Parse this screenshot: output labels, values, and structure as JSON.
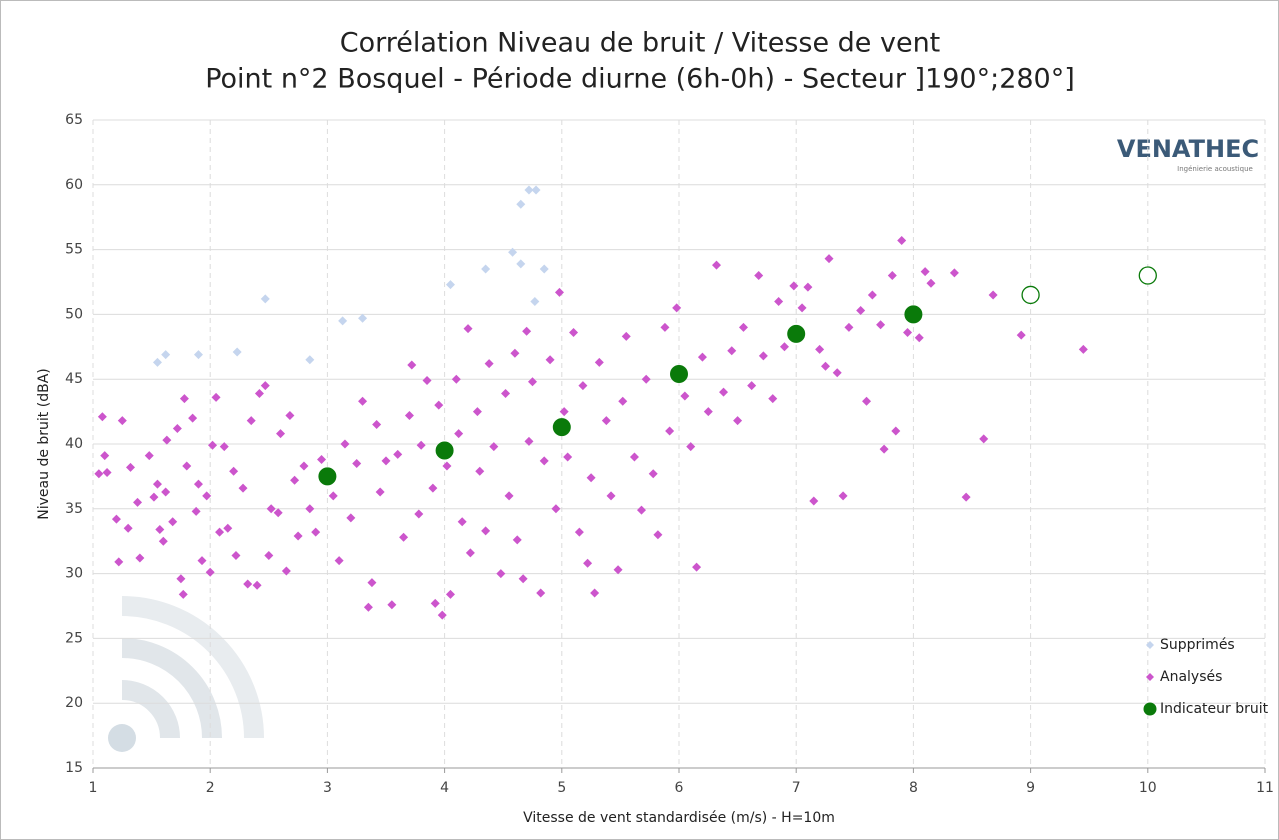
{
  "chart_data": {
    "type": "scatter",
    "title": "Corrélation Niveau de bruit / Vitesse de vent",
    "subtitle": "Point n°2 Bosquel - Période diurne (6h-0h) - Secteur ]190°;280°]",
    "x_label": "Vitesse de vent standardisée (m/s) - H=10m",
    "y_label": "Niveau de bruit (dBA)",
    "logo": "VENATHEC",
    "logo_subtitle": "Ingénierie acoustique",
    "xlim": [
      1,
      11
    ],
    "xticks": [
      1,
      2,
      3,
      4,
      5,
      6,
      7,
      8,
      9,
      10,
      11
    ],
    "ylim": [
      15,
      65
    ],
    "yticks": [
      15,
      20,
      25,
      30,
      35,
      40,
      45,
      50,
      55,
      60,
      65
    ],
    "grid": true,
    "legend": "bottom-right",
    "series": [
      {
        "name": "Supprimés",
        "color": "#c5d5ee",
        "marker": "diamond",
        "x": [
          1.55,
          1.62,
          1.9,
          2.23,
          2.47,
          2.85,
          3.13,
          3.3,
          4.05,
          4.35,
          4.58,
          4.65,
          4.65,
          4.72,
          4.78,
          4.77,
          4.85
        ],
        "values": [
          46.3,
          46.9,
          46.9,
          47.1,
          51.2,
          46.5,
          49.5,
          49.7,
          52.3,
          53.5,
          54.8,
          53.9,
          58.5,
          59.6,
          59.6,
          51,
          53.5
        ]
      },
      {
        "name": "Analysés",
        "color": "#cc55cc",
        "marker": "diamond",
        "x": [
          1.05,
          1.08,
          1.1,
          1.12,
          1.2,
          1.22,
          1.25,
          1.3,
          1.32,
          1.38,
          1.4,
          1.48,
          1.52,
          1.55,
          1.57,
          1.6,
          1.62,
          1.63,
          1.68,
          1.72,
          1.75,
          1.77,
          1.78,
          1.8,
          1.85,
          1.88,
          1.9,
          1.93,
          1.97,
          2.0,
          2.02,
          2.05,
          2.08,
          2.12,
          2.15,
          2.2,
          2.22,
          2.28,
          2.32,
          2.35,
          2.4,
          2.42,
          2.47,
          2.5,
          2.52,
          2.58,
          2.6,
          2.65,
          2.68,
          2.72,
          2.75,
          2.8,
          2.85,
          2.9,
          2.95,
          3.05,
          3.1,
          3.15,
          3.2,
          3.25,
          3.3,
          3.35,
          3.38,
          3.42,
          3.45,
          3.5,
          3.55,
          3.6,
          3.65,
          3.7,
          3.72,
          3.78,
          3.8,
          3.85,
          3.9,
          3.92,
          3.95,
          3.98,
          4.02,
          4.05,
          4.1,
          4.12,
          4.15,
          4.2,
          4.22,
          4.28,
          4.3,
          4.35,
          4.38,
          4.42,
          4.48,
          4.52,
          4.55,
          4.6,
          4.62,
          4.67,
          4.7,
          4.72,
          4.75,
          4.82,
          4.85,
          4.9,
          4.95,
          4.98,
          5.02,
          5.05,
          5.1,
          5.15,
          5.18,
          5.22,
          5.25,
          5.28,
          5.32,
          5.38,
          5.42,
          5.48,
          5.52,
          5.55,
          5.62,
          5.68,
          5.72,
          5.78,
          5.82,
          5.88,
          5.92,
          5.98,
          6.05,
          6.1,
          6.15,
          6.2,
          6.25,
          6.32,
          6.38,
          6.45,
          6.5,
          6.55,
          6.62,
          6.68,
          6.72,
          6.8,
          6.85,
          6.9,
          6.98,
          7.05,
          7.1,
          7.15,
          7.2,
          7.25,
          7.28,
          7.35,
          7.4,
          7.45,
          7.55,
          7.6,
          7.65,
          7.72,
          7.75,
          7.82,
          7.85,
          7.9,
          7.95,
          8.05,
          8.1,
          8.15,
          8.35,
          8.6,
          8.68,
          8.45,
          8.92,
          9.45
        ],
        "values": [
          37.7,
          42.1,
          39.1,
          37.8,
          34.2,
          30.9,
          41.8,
          33.5,
          38.2,
          35.5,
          31.2,
          39.1,
          35.9,
          36.9,
          33.4,
          32.5,
          36.3,
          40.3,
          34.0,
          41.2,
          29.6,
          28.4,
          43.5,
          38.3,
          42.0,
          34.8,
          36.9,
          31.0,
          36.0,
          30.1,
          39.9,
          43.6,
          33.2,
          39.8,
          33.5,
          37.9,
          31.4,
          36.6,
          29.2,
          41.8,
          29.1,
          43.9,
          44.5,
          31.4,
          35.0,
          34.7,
          40.8,
          30.2,
          42.2,
          37.2,
          32.9,
          38.3,
          35.0,
          33.2,
          38.8,
          36.0,
          31.0,
          40.0,
          34.3,
          38.5,
          43.3,
          27.4,
          29.3,
          41.5,
          36.3,
          38.7,
          27.6,
          39.2,
          32.8,
          42.2,
          46.1,
          34.6,
          39.9,
          44.9,
          36.6,
          27.7,
          43.0,
          26.8,
          38.3,
          28.4,
          45.0,
          40.8,
          34.0,
          48.9,
          31.6,
          42.5,
          37.9,
          33.3,
          46.2,
          39.8,
          30.0,
          43.9,
          36.0,
          47.0,
          32.6,
          29.6,
          48.7,
          40.2,
          44.8,
          28.5,
          38.7,
          46.5,
          35.0,
          51.7,
          42.5,
          39.0,
          48.6,
          33.2,
          44.5,
          30.8,
          37.4,
          28.5,
          46.3,
          41.8,
          36.0,
          30.3,
          43.3,
          48.3,
          39.0,
          34.9,
          45.0,
          37.7,
          33.0,
          49.0,
          41.0,
          50.5,
          43.7,
          39.8,
          30.5,
          46.7,
          42.5,
          53.8,
          44.0,
          47.2,
          41.8,
          49.0,
          44.5,
          53.0,
          46.8,
          43.5,
          51.0,
          47.5,
          52.2,
          50.5,
          52.1,
          35.6,
          47.3,
          46.0,
          54.3,
          45.5,
          36.0,
          49.0,
          50.3,
          43.3,
          51.5,
          49.2,
          39.6,
          53.0,
          41.0,
          55.7,
          48.6,
          48.2,
          53.3,
          52.4,
          53.2,
          40.4,
          51.5,
          35.9,
          48.4,
          47.3
        ]
      },
      {
        "name": "Indicateur bruit",
        "color": "#0a7a0a",
        "marker": "circle",
        "filled": true,
        "x": [
          3,
          4,
          5,
          6,
          7,
          8
        ],
        "values": [
          37.5,
          39.5,
          41.3,
          45.4,
          48.5,
          50
        ]
      },
      {
        "color": "#0a7a0a",
        "marker": "circle",
        "filled": false,
        "x": [
          9,
          10
        ],
        "values": [
          51.5,
          53
        ]
      }
    ]
  }
}
